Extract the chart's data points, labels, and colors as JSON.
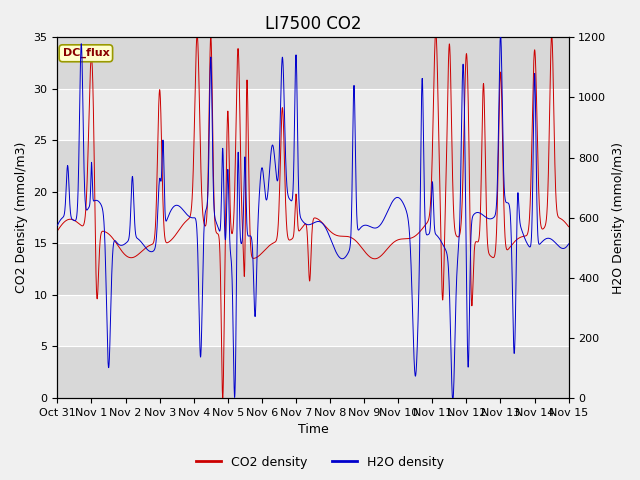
{
  "title": "LI7500 CO2",
  "xlabel": "Time",
  "ylabel_left": "CO2 Density (mmol/m3)",
  "ylabel_right": "H2O Density (mmol/m3)",
  "x_tick_labels": [
    "Oct 31",
    "Nov 1",
    "Nov 2",
    "Nov 3",
    "Nov 4",
    "Nov 5",
    "Nov 6",
    "Nov 7",
    "Nov 8",
    "Nov 9",
    "Nov 10",
    "Nov 11",
    "Nov 12",
    "Nov 13",
    "Nov 14",
    "Nov 15"
  ],
  "ylim_left": [
    0,
    35
  ],
  "ylim_right": [
    0,
    1200
  ],
  "co2_color": "#cc0000",
  "h2o_color": "#0000cc",
  "fig_facecolor": "#f0f0f0",
  "plot_facecolor": "#d8d8d8",
  "legend_box_text": "DC_flux",
  "legend_box_facecolor": "#ffffcc",
  "legend_box_edgecolor": "#999900",
  "co2_label": "CO2 density",
  "h2o_label": "H2O density",
  "title_fontsize": 12,
  "axis_label_fontsize": 9,
  "tick_fontsize": 8,
  "white_band_color": "#e8e8e8",
  "n_days": 15,
  "pts_per_day": 288
}
